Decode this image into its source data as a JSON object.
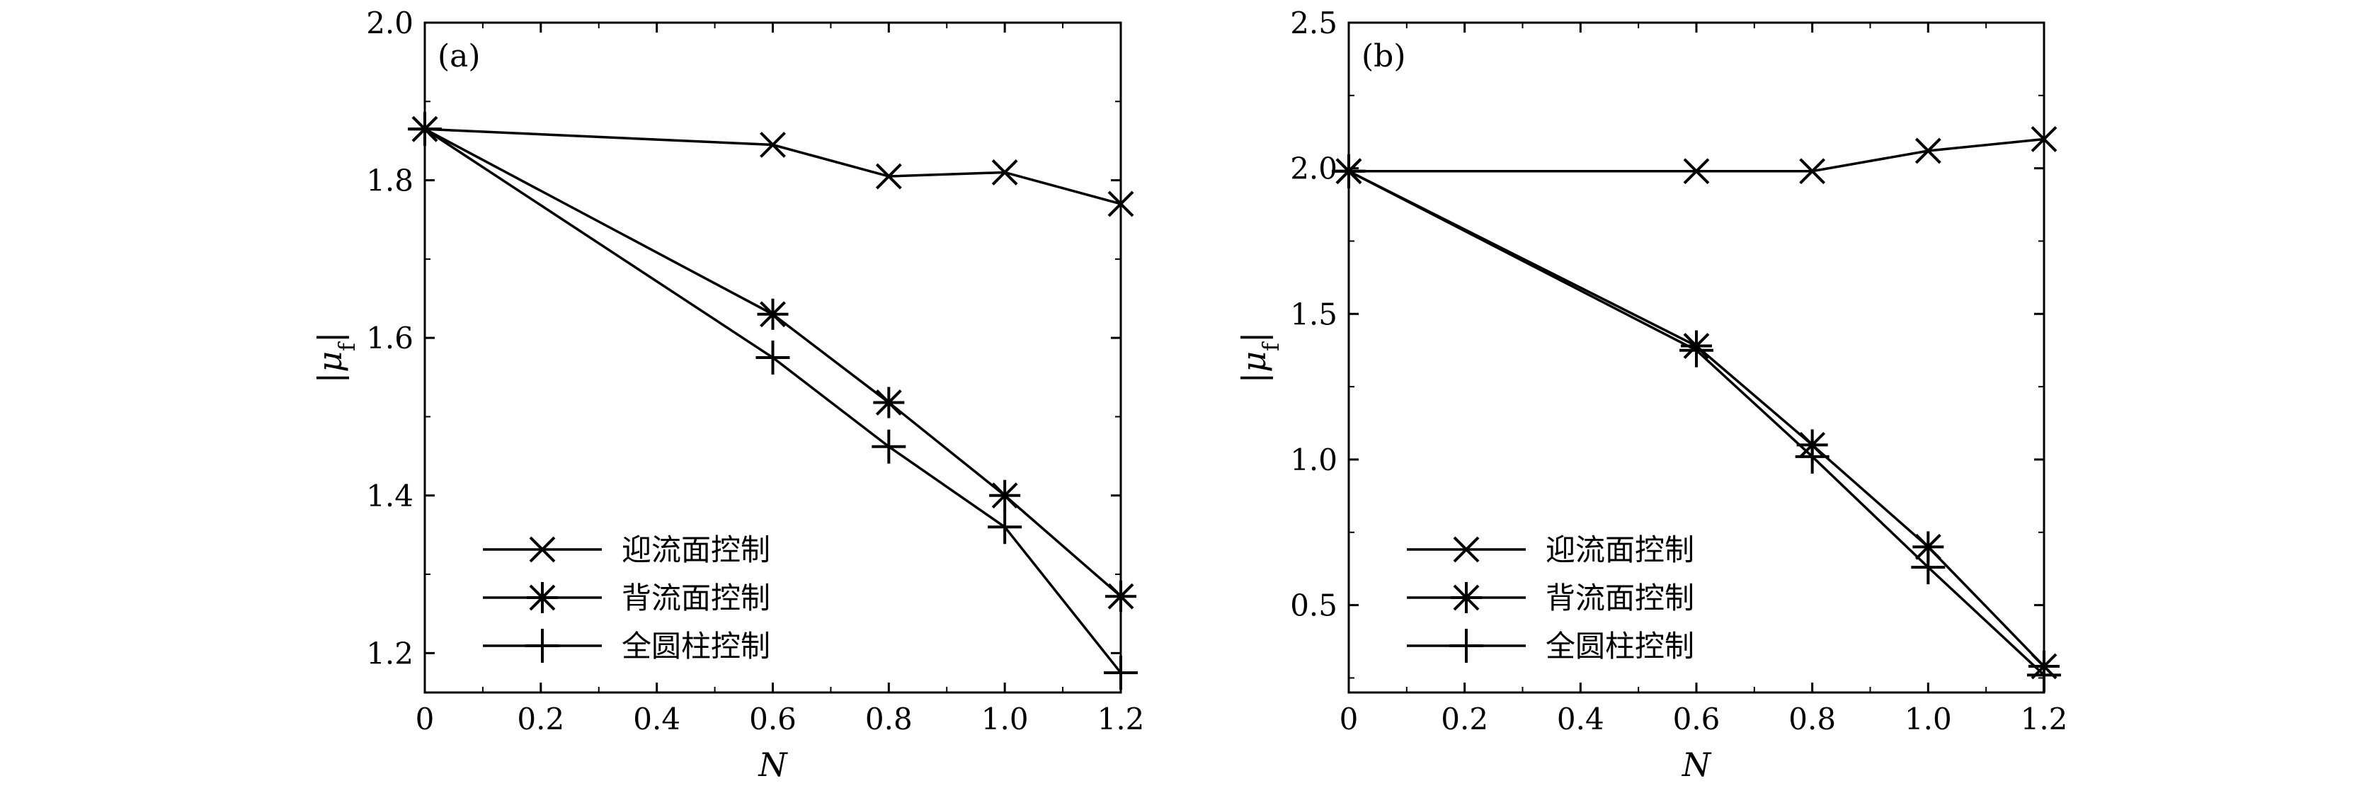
{
  "chart_data": [
    {
      "type": "line",
      "panel_label": "(a)",
      "xlabel": "N",
      "ylabel": "|μ_f|",
      "xlim": [
        0,
        1.2
      ],
      "ylim": [
        1.15,
        2.0
      ],
      "x_ticks": [
        "0",
        "0.2",
        "0.4",
        "0.6",
        "0.8",
        "1.0",
        "1.2"
      ],
      "y_ticks": [
        "1.2",
        "1.4",
        "1.6",
        "1.8",
        "2.0"
      ],
      "legend_position": "bottom-left",
      "series": [
        {
          "name": "迎流面控制",
          "marker": "x",
          "x": [
            0,
            0.6,
            0.8,
            1.0,
            1.2
          ],
          "y": [
            1.865,
            1.845,
            1.805,
            1.81,
            1.77
          ]
        },
        {
          "name": "背流面控制",
          "marker": "asterisk",
          "x": [
            0,
            0.6,
            0.8,
            1.0,
            1.2
          ],
          "y": [
            1.865,
            1.63,
            1.518,
            1.4,
            1.272
          ]
        },
        {
          "name": "全圆柱控制",
          "marker": "plus",
          "x": [
            0,
            0.6,
            0.8,
            1.0,
            1.2
          ],
          "y": [
            1.865,
            1.575,
            1.462,
            1.36,
            1.175
          ]
        }
      ]
    },
    {
      "type": "line",
      "panel_label": "(b)",
      "xlabel": "N",
      "ylabel": "|μ_f|",
      "xlim": [
        0,
        1.2
      ],
      "ylim": [
        0.2,
        2.5
      ],
      "x_ticks": [
        "0",
        "0.2",
        "0.4",
        "0.6",
        "0.8",
        "1.0",
        "1.2"
      ],
      "y_ticks": [
        "0.5",
        "1.0",
        "1.5",
        "2.0",
        "2.5"
      ],
      "legend_position": "bottom-left",
      "series": [
        {
          "name": "迎流面控制",
          "marker": "x",
          "x": [
            0,
            0.6,
            0.8,
            1.0,
            1.2
          ],
          "y": [
            1.99,
            1.99,
            1.99,
            2.06,
            2.1
          ]
        },
        {
          "name": "背流面控制",
          "marker": "asterisk",
          "x": [
            0,
            0.6,
            0.8,
            1.0,
            1.2
          ],
          "y": [
            1.99,
            1.39,
            1.05,
            0.7,
            0.29
          ]
        },
        {
          "name": "全圆柱控制",
          "marker": "plus",
          "x": [
            0,
            0.6,
            0.8,
            1.0,
            1.2
          ],
          "y": [
            1.99,
            1.375,
            1.01,
            0.63,
            0.26
          ]
        }
      ]
    }
  ]
}
